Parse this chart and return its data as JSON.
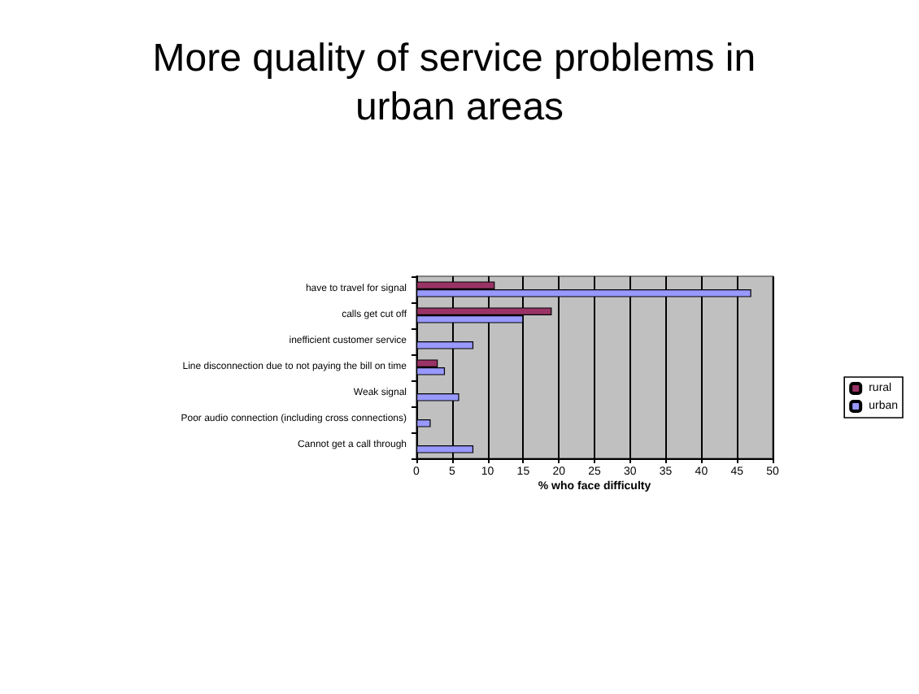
{
  "chart_data": {
    "type": "bar",
    "orientation": "horizontal",
    "title": "More quality of service problems in urban areas",
    "xlabel": "% who face difficulty",
    "categories": [
      "have to travel for signal",
      "calls get cut off",
      "inefficient customer service",
      "Line disconnection due to not paying the bill on time",
      "Weak signal",
      "Poor audio connection (including cross connections)",
      "Cannot get a call through"
    ],
    "series": [
      {
        "name": "rural",
        "color": "#993366",
        "values": [
          11,
          19,
          null,
          3,
          null,
          null,
          null
        ]
      },
      {
        "name": "urban",
        "color": "#9999ff",
        "values": [
          47,
          15,
          8,
          4,
          6,
          2,
          8
        ]
      }
    ],
    "xlim": [
      0,
      50
    ],
    "xticks": [
      0,
      5,
      10,
      15,
      20,
      25,
      30,
      35,
      40,
      45,
      50
    ],
    "grid": "x",
    "legend": "right"
  }
}
